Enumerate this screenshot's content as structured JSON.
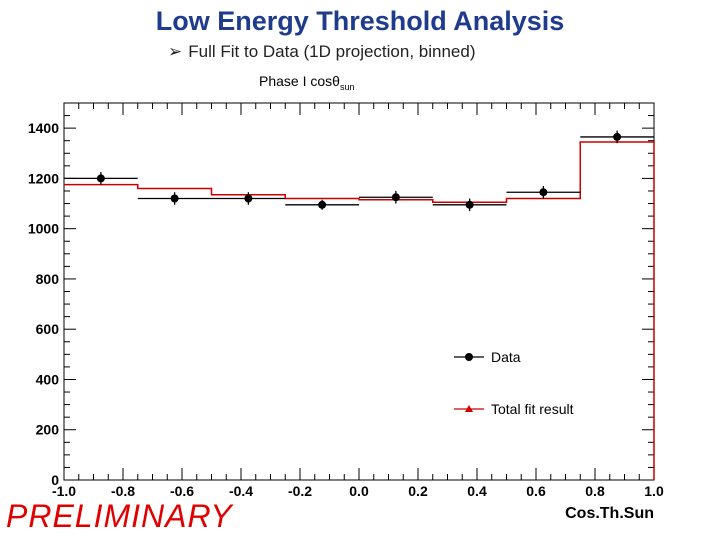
{
  "slide": {
    "title": "Low Energy Threshold Analysis",
    "bullet_glyph": "➢",
    "subtitle": "Full Fit to Data (1D projection, binned)",
    "plot_title_prefix": "Phase I cosθ",
    "plot_title_sub": "sun",
    "watermark": "PRELIMINARY"
  },
  "chart_data": {
    "type": "line",
    "title": "Phase I cosθsun",
    "xlabel": "Cos.Th.Sun",
    "ylabel": "",
    "xlim": [
      -1.0,
      1.0
    ],
    "ylim": [
      0,
      1500
    ],
    "x_ticks": [
      -1.0,
      -0.8,
      -0.6,
      -0.4,
      -0.2,
      0.0,
      0.2,
      0.4,
      0.6,
      0.8,
      1.0
    ],
    "x_tick_labels": [
      "-1.0",
      "-0.8",
      "-0.6",
      "-0.4",
      "-0.2",
      "0.0",
      "0.2",
      "0.4",
      "0.6",
      "0.8",
      "1.0"
    ],
    "y_ticks": [
      0,
      200,
      400,
      600,
      800,
      1000,
      1200,
      1400
    ],
    "y_tick_labels": [
      "0",
      "200",
      "400",
      "600",
      "800",
      "1000",
      "1200",
      "1400"
    ],
    "bin_edges": [
      -1.0,
      -0.75,
      -0.5,
      -0.25,
      0.0,
      0.25,
      0.5,
      0.75,
      1.0
    ],
    "series": [
      {
        "name": "Data",
        "color": "#000000",
        "marker": "circle",
        "x": [
          -0.875,
          -0.625,
          -0.375,
          -0.125,
          0.125,
          0.375,
          0.625,
          0.875
        ],
        "values": [
          1200,
          1120,
          1120,
          1095,
          1125,
          1095,
          1145,
          1365
        ],
        "errors": [
          25,
          25,
          25,
          20,
          25,
          25,
          25,
          25
        ]
      },
      {
        "name": "Total fit result",
        "color": "#cc0000",
        "marker": "triangle",
        "values": [
          1175,
          1160,
          1135,
          1120,
          1115,
          1105,
          1120,
          1345
        ]
      }
    ],
    "legend_position": "right"
  }
}
